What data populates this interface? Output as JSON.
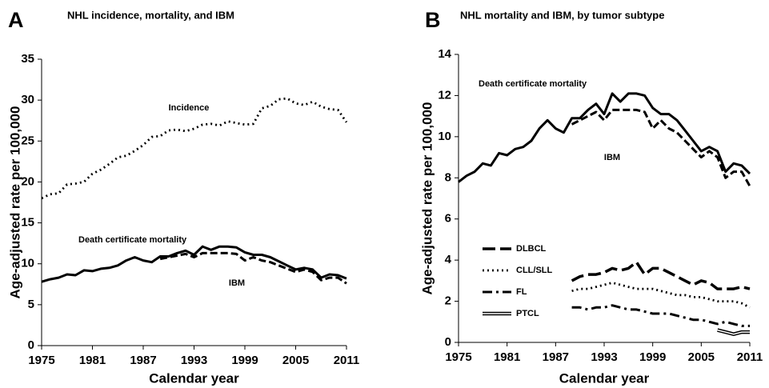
{
  "chart_data": [
    {
      "type": "line",
      "panel": "A",
      "title": "NHL incidence, mortality, and IBM",
      "x_label": "Calendar year",
      "y_label": "Age-adjusted rate per 100,000",
      "x": [
        1975,
        1976,
        1977,
        1978,
        1979,
        1980,
        1981,
        1982,
        1983,
        1984,
        1985,
        1986,
        1987,
        1988,
        1989,
        1990,
        1991,
        1992,
        1993,
        1994,
        1995,
        1996,
        1997,
        1998,
        1999,
        2000,
        2001,
        2002,
        2003,
        2004,
        2005,
        2006,
        2007,
        2008,
        2009,
        2010,
        2011
      ],
      "xlim": [
        1975,
        2011
      ],
      "xticks": [
        1975,
        1981,
        1987,
        1993,
        1999,
        2005,
        2011
      ],
      "ylim": [
        0,
        35
      ],
      "yticks": [
        0,
        5,
        10,
        15,
        20,
        25,
        30,
        35
      ],
      "series": [
        {
          "name": "Incidence",
          "color": "#000000",
          "style": "dotted",
          "values": [
            18.0,
            18.5,
            18.6,
            19.7,
            19.8,
            20.0,
            21.0,
            21.5,
            22.2,
            23.0,
            23.2,
            23.8,
            24.5,
            25.5,
            25.6,
            26.3,
            26.4,
            26.2,
            26.5,
            27.0,
            27.1,
            26.9,
            27.4,
            27.2,
            27.0,
            27.1,
            29.0,
            29.3,
            30.1,
            30.2,
            29.6,
            29.4,
            29.8,
            29.2,
            28.9,
            28.8,
            27.3
          ]
        },
        {
          "name": "Death certificate mortality",
          "color": "#000000",
          "style": "solid",
          "values": [
            7.8,
            8.1,
            8.3,
            8.7,
            8.6,
            9.2,
            9.1,
            9.4,
            9.5,
            9.8,
            10.4,
            10.8,
            10.4,
            10.2,
            10.9,
            10.9,
            11.3,
            11.6,
            11.1,
            12.1,
            11.7,
            12.1,
            12.1,
            12.0,
            11.4,
            11.1,
            11.1,
            10.8,
            10.3,
            9.8,
            9.3,
            9.5,
            9.3,
            8.3,
            8.7,
            8.6,
            8.2
          ]
        },
        {
          "name": "IBM",
          "color": "#000000",
          "style": "dashed",
          "values": [
            null,
            null,
            null,
            null,
            null,
            null,
            null,
            null,
            null,
            null,
            null,
            null,
            null,
            null,
            10.6,
            10.8,
            11.0,
            11.2,
            10.8,
            11.3,
            11.3,
            11.3,
            11.3,
            11.2,
            10.4,
            10.8,
            10.4,
            10.2,
            9.8,
            9.4,
            9.0,
            9.3,
            9.0,
            8.0,
            8.3,
            8.3,
            7.6
          ]
        }
      ]
    },
    {
      "type": "line",
      "panel": "B",
      "title": "NHL mortality and IBM, by tumor subtype",
      "x_label": "Calendar year",
      "y_label": "Age-adjusted rate per 100,000",
      "x": [
        1975,
        1976,
        1977,
        1978,
        1979,
        1980,
        1981,
        1982,
        1983,
        1984,
        1985,
        1986,
        1987,
        1988,
        1989,
        1990,
        1991,
        1992,
        1993,
        1994,
        1995,
        1996,
        1997,
        1998,
        1999,
        2000,
        2001,
        2002,
        2003,
        2004,
        2005,
        2006,
        2007,
        2008,
        2009,
        2010,
        2011
      ],
      "xlim": [
        1975,
        2011
      ],
      "xticks": [
        1975,
        1981,
        1987,
        1993,
        1999,
        2005,
        2011
      ],
      "ylim": [
        0,
        14
      ],
      "yticks": [
        0,
        2,
        4,
        6,
        8,
        10,
        12,
        14
      ],
      "series": [
        {
          "name": "Death certificate mortality",
          "color": "#000000",
          "style": "solid",
          "values": [
            7.8,
            8.1,
            8.3,
            8.7,
            8.6,
            9.2,
            9.1,
            9.4,
            9.5,
            9.8,
            10.4,
            10.8,
            10.4,
            10.2,
            10.9,
            10.9,
            11.3,
            11.6,
            11.1,
            12.1,
            11.7,
            12.1,
            12.1,
            12.0,
            11.4,
            11.1,
            11.1,
            10.8,
            10.3,
            9.8,
            9.3,
            9.5,
            9.3,
            8.3,
            8.7,
            8.6,
            8.2
          ]
        },
        {
          "name": "IBM",
          "color": "#000000",
          "style": "dashed",
          "values": [
            null,
            null,
            null,
            null,
            null,
            null,
            null,
            null,
            null,
            null,
            null,
            null,
            null,
            null,
            10.6,
            10.8,
            11.0,
            11.2,
            10.8,
            11.3,
            11.3,
            11.3,
            11.3,
            11.2,
            10.4,
            10.8,
            10.4,
            10.2,
            9.8,
            9.4,
            9.0,
            9.3,
            9.0,
            8.0,
            8.3,
            8.3,
            7.6
          ]
        },
        {
          "name": "DLBCL",
          "color": "#000000",
          "style": "longdash",
          "values": [
            null,
            null,
            null,
            null,
            null,
            null,
            null,
            null,
            null,
            null,
            null,
            null,
            null,
            null,
            3.0,
            3.2,
            3.3,
            3.3,
            3.4,
            3.6,
            3.5,
            3.6,
            3.9,
            3.3,
            3.6,
            3.6,
            3.4,
            3.2,
            3.0,
            2.8,
            3.0,
            2.9,
            2.6,
            2.6,
            2.6,
            2.7,
            2.6
          ]
        },
        {
          "name": "CLL/SLL",
          "color": "#000000",
          "style": "dotted",
          "values": [
            null,
            null,
            null,
            null,
            null,
            null,
            null,
            null,
            null,
            null,
            null,
            null,
            null,
            null,
            2.5,
            2.6,
            2.6,
            2.7,
            2.8,
            2.9,
            2.8,
            2.7,
            2.6,
            2.6,
            2.6,
            2.5,
            2.4,
            2.3,
            2.3,
            2.2,
            2.2,
            2.1,
            2.0,
            2.0,
            2.0,
            1.9,
            1.7
          ]
        },
        {
          "name": "FL",
          "color": "#000000",
          "style": "dashdot",
          "values": [
            null,
            null,
            null,
            null,
            null,
            null,
            null,
            null,
            null,
            null,
            null,
            null,
            null,
            null,
            1.7,
            1.7,
            1.6,
            1.7,
            1.7,
            1.8,
            1.7,
            1.6,
            1.6,
            1.5,
            1.4,
            1.4,
            1.4,
            1.3,
            1.2,
            1.1,
            1.1,
            1.0,
            0.9,
            1.0,
            0.9,
            0.8,
            0.8
          ]
        },
        {
          "name": "PTCL",
          "color": "#000000",
          "style": "double",
          "values": [
            null,
            null,
            null,
            null,
            null,
            null,
            null,
            null,
            null,
            null,
            null,
            null,
            null,
            null,
            null,
            null,
            null,
            null,
            null,
            null,
            null,
            null,
            null,
            null,
            null,
            null,
            null,
            null,
            null,
            null,
            null,
            null,
            0.6,
            0.5,
            0.4,
            0.5,
            0.5
          ]
        }
      ]
    }
  ]
}
